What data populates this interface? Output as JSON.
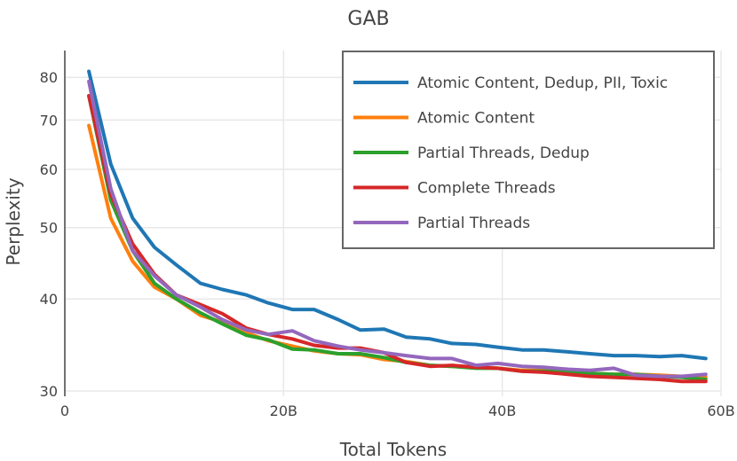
{
  "chart_data": {
    "type": "line",
    "title": "GAB",
    "xlabel": "Total Tokens",
    "ylabel": "Perplexity",
    "xlim": [
      0,
      60
    ],
    "ylim": [
      29.5,
      87
    ],
    "y_scale": "log",
    "x_ticks": [
      {
        "value": 0,
        "label": "0"
      },
      {
        "value": 20,
        "label": "20B"
      },
      {
        "value": 40,
        "label": "40B"
      },
      {
        "value": 60,
        "label": "60B"
      }
    ],
    "y_ticks": [
      {
        "value": 30,
        "label": "30"
      },
      {
        "value": 40,
        "label": "40"
      },
      {
        "value": 50,
        "label": "50"
      },
      {
        "value": 60,
        "label": "60"
      },
      {
        "value": 70,
        "label": "70"
      },
      {
        "value": 80,
        "label": "80"
      }
    ],
    "grid": true,
    "legend_position": "top-right",
    "series": [
      {
        "name": "Atomic Content, Dedup, PII, Toxic",
        "color": "#1f77b4",
        "x": [
          2.2,
          4.2,
          6.2,
          8.2,
          10.2,
          12.4,
          14.4,
          16.6,
          18.6,
          20.8,
          22.8,
          25,
          27,
          29.2,
          31.2,
          33.4,
          35.4,
          37.6,
          39.6,
          41.8,
          43.8,
          46,
          48,
          50.2,
          52.2,
          54.4,
          56.4,
          58.6
        ],
        "y": [
          81.5,
          61,
          51.5,
          47,
          44.5,
          42,
          41.2,
          40.5,
          39.5,
          38.7,
          38.7,
          37.5,
          36.3,
          36.4,
          35.5,
          35.3,
          34.8,
          34.7,
          34.4,
          34.1,
          34.1,
          33.9,
          33.7,
          33.5,
          33.5,
          33.4,
          33.5,
          33.2
        ]
      },
      {
        "name": "Atomic Content",
        "color": "#ff7f0e",
        "x": [
          2.2,
          4.2,
          6.2,
          8.2,
          10.2,
          12.4,
          14.4,
          16.6,
          18.6,
          20.8,
          22.8,
          25,
          27,
          29.2,
          31.2,
          33.4,
          35.4,
          37.6,
          39.6,
          41.8,
          43.8,
          46,
          48,
          50.2,
          52.2,
          54.4,
          56.4,
          58.6
        ],
        "y": [
          68.8,
          51.5,
          45,
          41.5,
          40,
          38,
          37.2,
          36,
          35.1,
          34.5,
          34,
          33.7,
          33.6,
          33.1,
          32.9,
          32.5,
          32.4,
          32.3,
          32.2,
          32,
          32,
          31.8,
          31.7,
          31.6,
          31.6,
          31.5,
          31.4,
          31.3
        ]
      },
      {
        "name": "Partial Threads, Dedup",
        "color": "#2ca02c",
        "x": [
          2.2,
          4.2,
          6.2,
          8.2,
          10.2,
          12.4,
          14.4,
          16.6,
          18.6,
          20.8,
          22.8,
          25,
          27,
          29.2,
          31.2,
          33.4,
          35.4,
          37.6,
          39.6,
          41.8,
          43.8,
          46,
          48,
          50.2,
          52.2,
          54.4,
          56.4,
          58.6
        ],
        "y": [
          75.5,
          54.5,
          46.5,
          42,
          40,
          38.3,
          37,
          35.7,
          35.2,
          34.2,
          34.1,
          33.7,
          33.7,
          33.3,
          32.8,
          32.5,
          32.4,
          32.2,
          32.2,
          31.9,
          31.9,
          31.9,
          31.7,
          31.6,
          31.6,
          31.4,
          31.3,
          31.1
        ]
      },
      {
        "name": "Complete Threads",
        "color": "#d62728",
        "x": [
          2.2,
          4.2,
          6.2,
          8.2,
          10.2,
          12.4,
          14.4,
          16.6,
          18.6,
          20.8,
          22.8,
          25,
          27,
          29.2,
          31.2,
          33.4,
          35.4,
          37.6,
          39.6,
          41.8,
          43.8,
          46,
          48,
          50.2,
          52.2,
          54.4,
          56.4,
          58.6
        ],
        "y": [
          75.5,
          55.5,
          47.5,
          43.2,
          40.5,
          39.3,
          38.2,
          36.5,
          35.8,
          35.3,
          34.6,
          34.3,
          34.3,
          33.8,
          32.8,
          32.4,
          32.5,
          32.3,
          32.2,
          31.9,
          31.8,
          31.6,
          31.4,
          31.3,
          31.2,
          31.1,
          30.9,
          30.9
        ]
      },
      {
        "name": "Partial Threads",
        "color": "#9467bd",
        "x": [
          2.2,
          4.2,
          6.2,
          8.2,
          10.2,
          12.4,
          14.4,
          16.6,
          18.6,
          20.8,
          22.8,
          25,
          27,
          29.2,
          31.2,
          33.4,
          35.4,
          37.6,
          39.6,
          41.8,
          43.8,
          46,
          48,
          50.2,
          52.2,
          54.4,
          56.4,
          58.6
        ],
        "y": [
          79,
          56.5,
          46.5,
          43,
          40.5,
          39,
          37.5,
          36.3,
          35.8,
          36.2,
          35.1,
          34.5,
          34.1,
          33.8,
          33.5,
          33.2,
          33.2,
          32.5,
          32.7,
          32.4,
          32.3,
          32.1,
          32,
          32.2,
          31.5,
          31.4,
          31.4,
          31.6
        ]
      }
    ]
  }
}
